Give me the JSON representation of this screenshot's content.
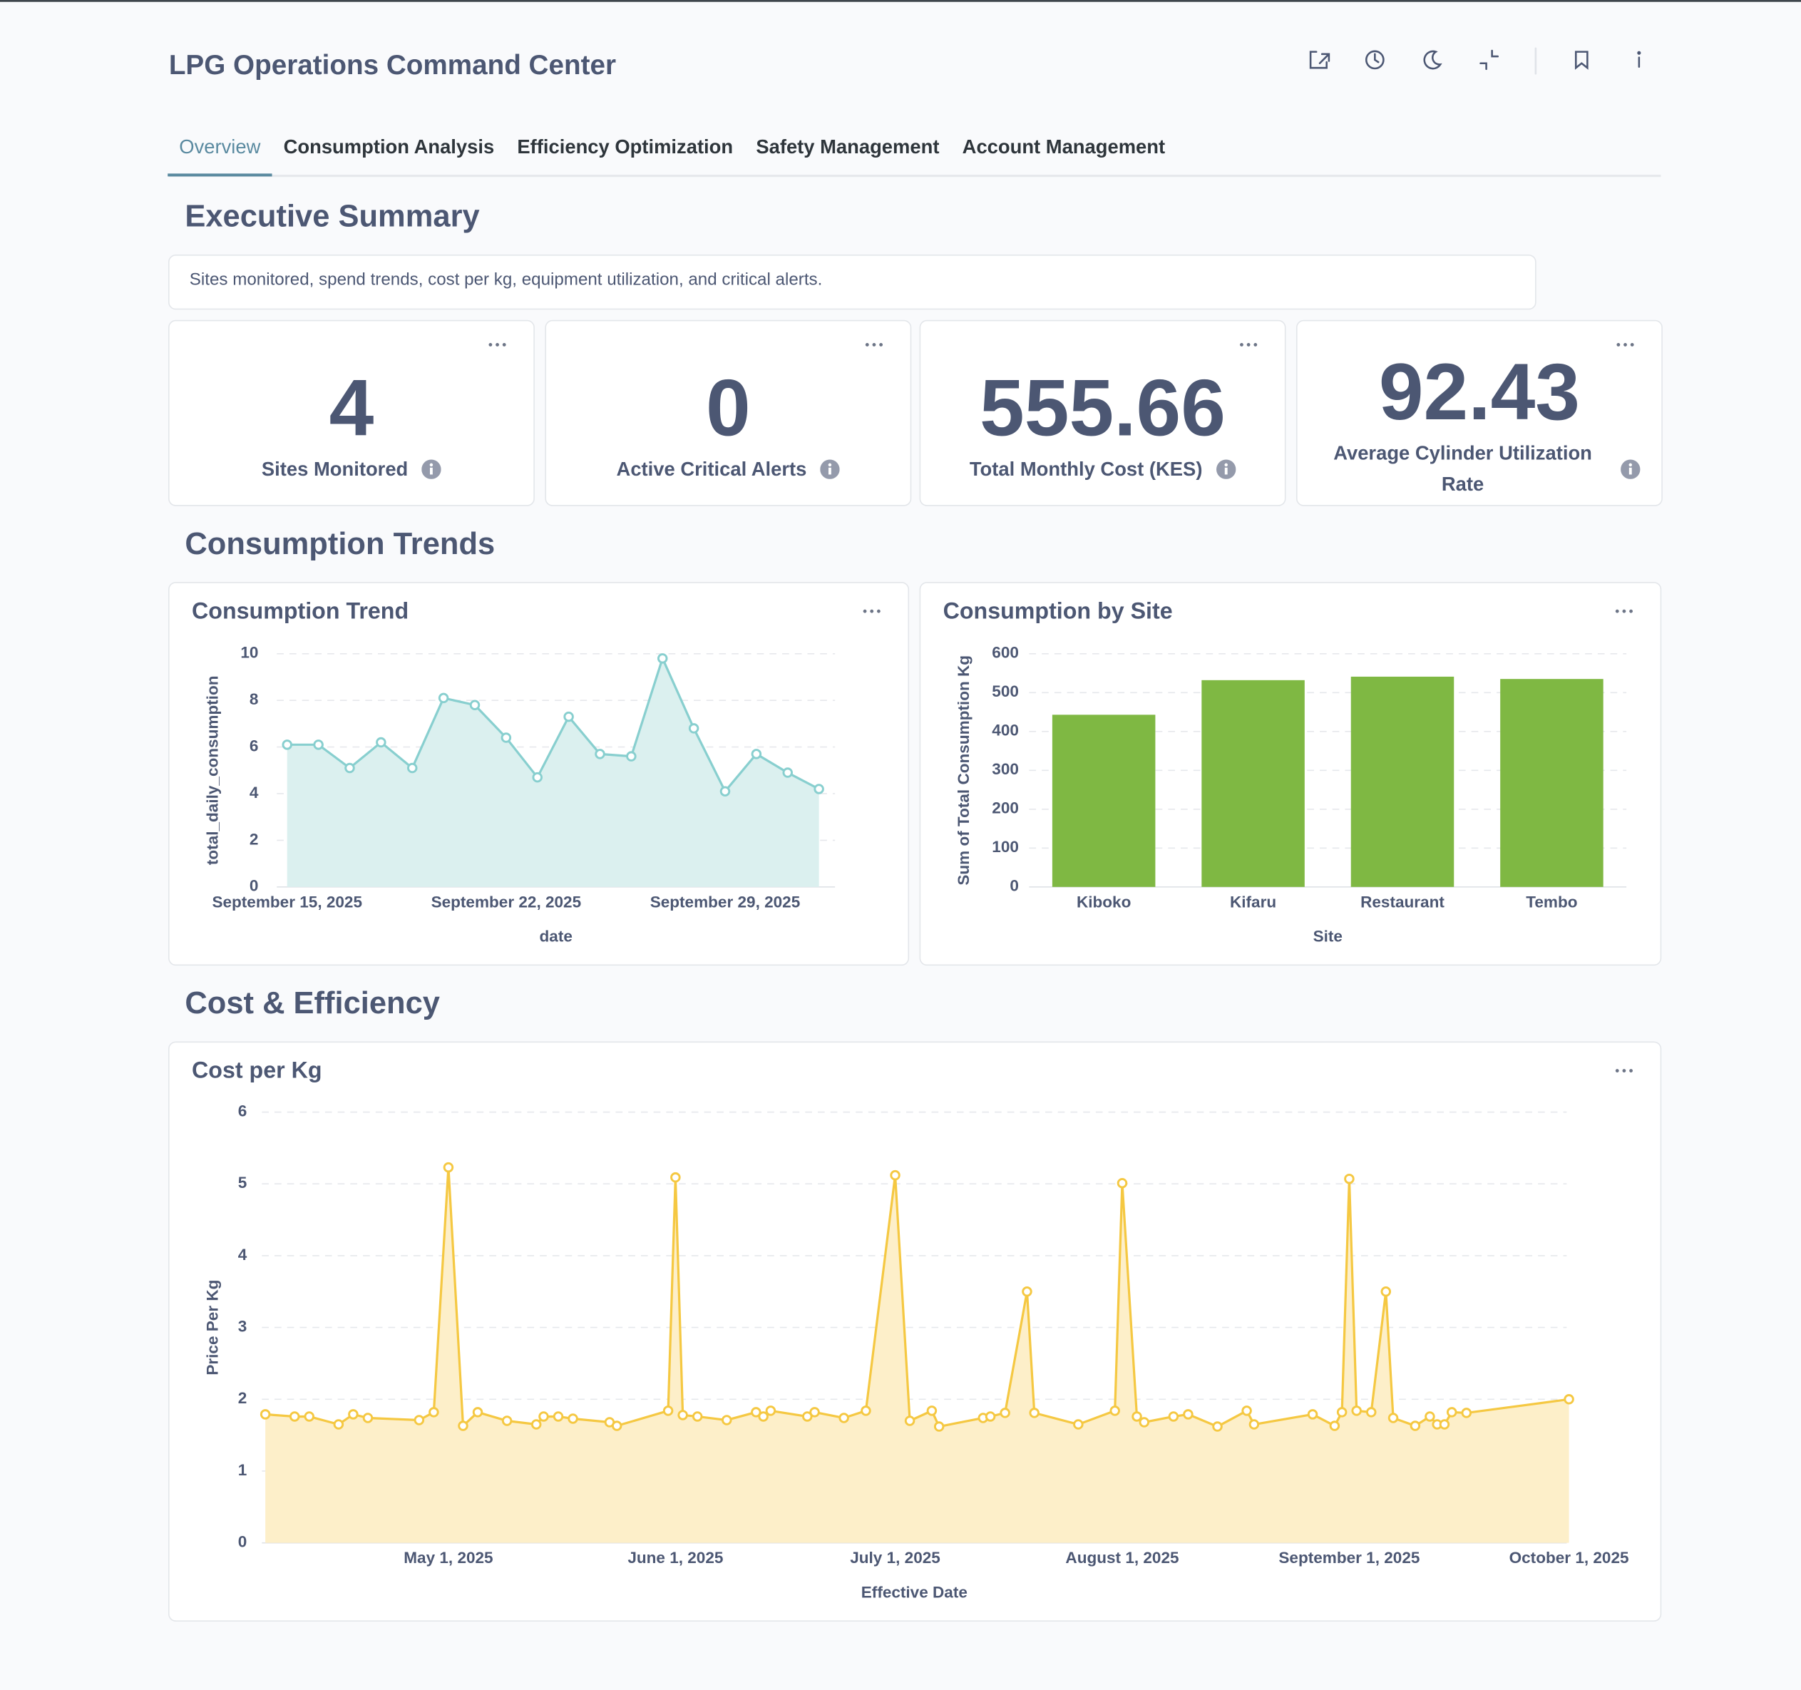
{
  "header": {
    "title": "LPG Operations Command Center"
  },
  "tabs": [
    "Overview",
    "Consumption Analysis",
    "Efficiency Optimization",
    "Safety Management",
    "Account Management"
  ],
  "sections": [
    "Executive Summary",
    "Consumption Trends",
    "Cost & Efficiency"
  ],
  "description": "Sites monitored, spend trends, cost per kg, equipment utilization, and critical alerts.",
  "kpis": [
    {
      "value": 4,
      "label": "Sites Monitored"
    },
    {
      "value": 0,
      "label": "Active Critical Alerts"
    },
    {
      "value": 555.66,
      "label": "Total Monthly Cost (KES)"
    },
    {
      "value": 92.43,
      "label": "Average Cylinder Utilization Rate"
    }
  ],
  "chart_data": [
    {
      "type": "area",
      "title": "Consumption Trend",
      "x_label": "date",
      "y_label": "total_daily_consumption",
      "color": "#88cfcf",
      "fill": "#dbf0ef",
      "x": [
        "2025-09-15",
        "2025-09-16",
        "2025-09-17",
        "2025-09-18",
        "2025-09-19",
        "2025-09-20",
        "2025-09-21",
        "2025-09-22",
        "2025-09-23",
        "2025-09-24",
        "2025-09-25",
        "2025-09-26",
        "2025-09-27",
        "2025-09-28",
        "2025-09-29",
        "2025-09-30",
        "2025-10-01",
        "2025-10-02"
      ],
      "values": [
        6.1,
        6.1,
        5.1,
        6.2,
        5.1,
        8.1,
        7.8,
        6.4,
        4.7,
        7.3,
        5.7,
        5.6,
        9.8,
        6.8,
        4.1,
        5.7,
        4.9,
        4.2
      ],
      "xlim": [
        "2025-09-15",
        "2025-10-02"
      ],
      "xticks": [
        {
          "value": "2025-09-15",
          "label": "September 15, 2025"
        },
        {
          "value": "2025-09-22",
          "label": "September 22, 2025"
        },
        {
          "value": "2025-09-29",
          "label": "September 29, 2025"
        }
      ],
      "ylim": [
        0,
        10
      ],
      "yticks": [
        0,
        2,
        4,
        6,
        8,
        10
      ],
      "grid": true
    },
    {
      "type": "bar",
      "title": "Consumption by Site",
      "x_label": "Site",
      "y_label": "Sum of Total Consumption Kg",
      "color": "#7fb843",
      "categories": [
        "Kiboko",
        "Kifaru",
        "Restaurant",
        "Tembo"
      ],
      "values": [
        443,
        532,
        541,
        535
      ],
      "ylim": [
        0,
        600
      ],
      "yticks": [
        0,
        100,
        200,
        300,
        400,
        500,
        600
      ],
      "grid": true
    },
    {
      "type": "area",
      "title": "Cost per Kg",
      "x_label": "Effective Date",
      "y_label": "Price Per Kg",
      "color": "#f5c842",
      "fill": "#fdefc9",
      "x": [
        "2025-04-06",
        "2025-04-10",
        "2025-04-12",
        "2025-04-16",
        "2025-04-18",
        "2025-04-20",
        "2025-04-27",
        "2025-04-29",
        "2025-05-01",
        "2025-05-03",
        "2025-05-05",
        "2025-05-09",
        "2025-05-13",
        "2025-05-14",
        "2025-05-16",
        "2025-05-18",
        "2025-05-23",
        "2025-05-24",
        "2025-05-31",
        "2025-06-01",
        "2025-06-02",
        "2025-06-04",
        "2025-06-08",
        "2025-06-12",
        "2025-06-13",
        "2025-06-14",
        "2025-06-19",
        "2025-06-20",
        "2025-06-24",
        "2025-06-27",
        "2025-07-01",
        "2025-07-03",
        "2025-07-06",
        "2025-07-07",
        "2025-07-13",
        "2025-07-14",
        "2025-07-16",
        "2025-07-19",
        "2025-07-20",
        "2025-07-26",
        "2025-07-31",
        "2025-08-01",
        "2025-08-03",
        "2025-08-04",
        "2025-08-08",
        "2025-08-10",
        "2025-08-14",
        "2025-08-18",
        "2025-08-19",
        "2025-08-27",
        "2025-08-30",
        "2025-08-31",
        "2025-09-01",
        "2025-09-02",
        "2025-09-04",
        "2025-09-06",
        "2025-09-07",
        "2025-09-10",
        "2025-09-12",
        "2025-09-13",
        "2025-09-14",
        "2025-09-15",
        "2025-09-17",
        "2025-10-01"
      ],
      "values": [
        1.79,
        1.76,
        1.76,
        1.65,
        1.79,
        1.74,
        1.71,
        1.82,
        5.23,
        1.63,
        1.82,
        1.7,
        1.65,
        1.76,
        1.76,
        1.73,
        1.68,
        1.63,
        1.84,
        5.09,
        1.78,
        1.76,
        1.71,
        1.82,
        1.76,
        1.84,
        1.76,
        1.82,
        1.74,
        1.84,
        5.12,
        1.7,
        1.84,
        1.62,
        1.74,
        1.76,
        1.81,
        3.5,
        1.81,
        1.65,
        1.84,
        5.01,
        1.76,
        1.68,
        1.76,
        1.79,
        1.62,
        1.84,
        1.65,
        1.79,
        1.63,
        1.82,
        5.07,
        1.84,
        1.82,
        3.5,
        1.74,
        1.63,
        1.76,
        1.65,
        1.65,
        1.82,
        1.81,
        2.0
      ],
      "xlim": [
        "2025-04-06",
        "2025-10-01"
      ],
      "xticks": [
        {
          "value": "2025-05-01",
          "label": "May 1, 2025"
        },
        {
          "value": "2025-06-01",
          "label": "June 1, 2025"
        },
        {
          "value": "2025-07-01",
          "label": "July 1, 2025"
        },
        {
          "value": "2025-08-01",
          "label": "August 1, 2025"
        },
        {
          "value": "2025-09-01",
          "label": "September 1, 2025"
        },
        {
          "value": "2025-10-01",
          "label": "October 1, 2025"
        }
      ],
      "ylim": [
        0,
        6
      ],
      "yticks": [
        0,
        1,
        2,
        3,
        4,
        5,
        6
      ],
      "grid": true
    }
  ]
}
